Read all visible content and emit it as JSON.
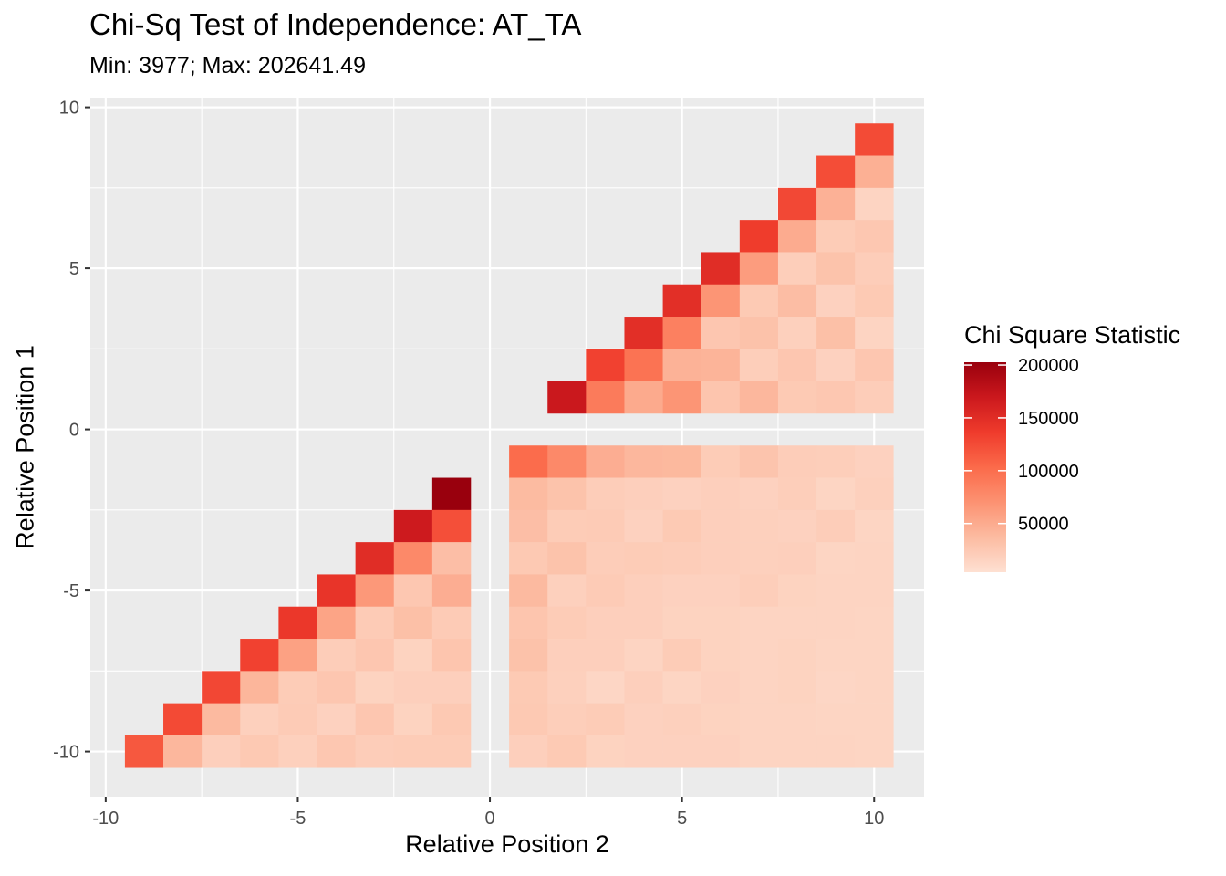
{
  "chart_data": {
    "type": "heatmap",
    "title": "Chi-Sq Test of Independence: AT_TA",
    "subtitle": "Min: 3977; Max: 202641.49",
    "xlabel": "Relative Position 2",
    "ylabel": "Relative Position 1",
    "xlim": [
      -10.4,
      11.3
    ],
    "ylim": [
      -11.4,
      10.3
    ],
    "x_ticks": [
      -10,
      -5,
      0,
      5,
      10
    ],
    "y_ticks": [
      -10,
      -5,
      0,
      5,
      10
    ],
    "x_tick_labels": [
      "-10",
      "-5",
      "0",
      "5",
      "10"
    ],
    "y_tick_labels": [
      "-10",
      "-5",
      "0",
      "5",
      "10"
    ],
    "grid": true,
    "panel_background": "#ebebeb",
    "legend": {
      "title": "Chi Square Statistic",
      "position": "right",
      "breaks": [
        50000,
        100000,
        150000,
        200000
      ],
      "labels": [
        "50000",
        "100000",
        "150000",
        "200000"
      ],
      "range": [
        3977,
        202641.49
      ],
      "colors": [
        "#fee0d2",
        "#fcbba1",
        "#fc9272",
        "#fb6a4a",
        "#ef3b2c",
        "#cb181d",
        "#99000d"
      ]
    },
    "cells_value_units": "Chi Square Statistic",
    "top_right_rows": [
      {
        "y": 9,
        "x_start": 10,
        "values": [
          125000
        ]
      },
      {
        "y": 8,
        "x_start": 9,
        "values": [
          124000,
          46000
        ]
      },
      {
        "y": 7,
        "x_start": 8,
        "values": [
          127000,
          45000,
          15000
        ]
      },
      {
        "y": 6,
        "x_start": 7,
        "values": [
          136000,
          50000,
          22000,
          26000
        ]
      },
      {
        "y": 5,
        "x_start": 6,
        "values": [
          150000,
          62000,
          20000,
          30000,
          21000
        ]
      },
      {
        "y": 4,
        "x_start": 5,
        "values": [
          148000,
          68000,
          24000,
          35000,
          17000,
          24000
        ]
      },
      {
        "y": 3,
        "x_start": 4,
        "values": [
          148000,
          85000,
          27000,
          31000,
          18000,
          33000,
          15000
        ]
      },
      {
        "y": 2,
        "x_start": 3,
        "values": [
          132000,
          96000,
          44000,
          43000,
          20000,
          27000,
          17000,
          27000
        ]
      },
      {
        "y": 1,
        "x_start": 2,
        "values": [
          170000,
          89000,
          51000,
          68000,
          28000,
          40000,
          24000,
          26000,
          21000
        ]
      }
    ],
    "bottom_right_rows": [
      {
        "y": -1,
        "x_start": 1,
        "values": [
          102000,
          78000,
          48000,
          40000,
          39000,
          22000,
          29000,
          21000,
          20000,
          17000
        ]
      },
      {
        "y": -2,
        "x_start": 1,
        "values": [
          37000,
          30000,
          21000,
          19000,
          17000,
          19000,
          17000,
          20000,
          14000,
          18000
        ]
      },
      {
        "y": -3,
        "x_start": 1,
        "values": [
          34000,
          22000,
          23000,
          17000,
          24000,
          19000,
          18000,
          17000,
          21000,
          14000
        ]
      },
      {
        "y": -4,
        "x_start": 1,
        "values": [
          25000,
          30000,
          21000,
          22000,
          21000,
          19000,
          18000,
          19000,
          14000,
          15000
        ]
      },
      {
        "y": -5,
        "x_start": 1,
        "values": [
          38000,
          18000,
          23000,
          19000,
          17000,
          17000,
          20000,
          16000,
          15000,
          15000
        ]
      },
      {
        "y": -6,
        "x_start": 1,
        "values": [
          28000,
          22000,
          19000,
          19000,
          16000,
          16000,
          15000,
          15000,
          15000,
          14000
        ]
      },
      {
        "y": -7,
        "x_start": 1,
        "values": [
          31000,
          19000,
          19000,
          15000,
          22000,
          16000,
          15000,
          16000,
          14000,
          14000
        ]
      },
      {
        "y": -8,
        "x_start": 1,
        "values": [
          24000,
          18000,
          13000,
          19000,
          14000,
          17000,
          15000,
          16000,
          13000,
          14000
        ]
      },
      {
        "y": -9,
        "x_start": 1,
        "values": [
          25000,
          20000,
          22000,
          17000,
          18000,
          16000,
          15000,
          15000,
          14000,
          14000
        ]
      },
      {
        "y": -10,
        "x_start": 1,
        "values": [
          19000,
          24000,
          16000,
          17000,
          17000,
          17000,
          15000,
          15000,
          15000,
          14000
        ]
      }
    ],
    "bottom_left_rows": [
      {
        "y": -2,
        "x_start": -1,
        "values": [
          202641
        ]
      },
      {
        "y": -3,
        "x_start": -2,
        "values": [
          168000,
          122000
        ]
      },
      {
        "y": -4,
        "x_start": -3,
        "values": [
          150000,
          78000,
          34000
        ]
      },
      {
        "y": -5,
        "x_start": -4,
        "values": [
          143000,
          65000,
          26000,
          48000
        ]
      },
      {
        "y": -6,
        "x_start": -5,
        "values": [
          140000,
          56000,
          23000,
          33000,
          23000
        ]
      },
      {
        "y": -7,
        "x_start": -6,
        "values": [
          132000,
          58000,
          21000,
          27000,
          16000,
          28000
        ]
      },
      {
        "y": -8,
        "x_start": -7,
        "values": [
          128000,
          41000,
          22000,
          27000,
          16000,
          19000,
          19000
        ]
      },
      {
        "y": -9,
        "x_start": -8,
        "values": [
          126000,
          38000,
          18000,
          23000,
          17000,
          27000,
          16000,
          25000
        ]
      },
      {
        "y": -10,
        "x_start": -9,
        "values": [
          116000,
          40000,
          19000,
          25000,
          18000,
          26000,
          21000,
          22000,
          22000
        ]
      }
    ]
  }
}
